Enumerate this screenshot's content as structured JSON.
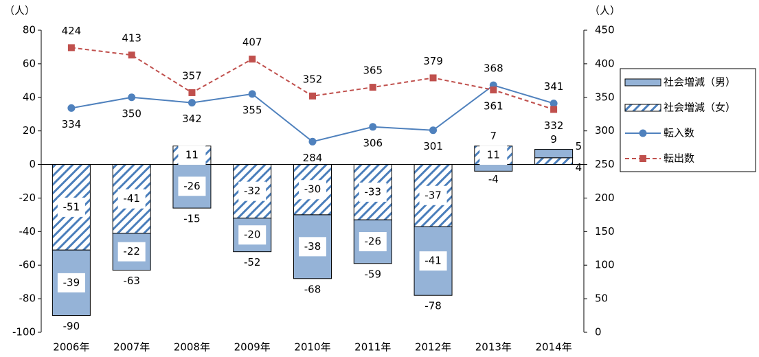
{
  "chart_data": {
    "type": "bar",
    "categories": [
      "2006年",
      "2007年",
      "2008年",
      "2009年",
      "2010年",
      "2011年",
      "2012年",
      "2013年",
      "2014年"
    ],
    "y_unit": "（人）",
    "y2_unit": "（人）",
    "ylim": [
      -100,
      80
    ],
    "yticks": [
      -100,
      -80,
      -60,
      -40,
      -20,
      0,
      20,
      40,
      60,
      80
    ],
    "y2lim": [
      0,
      450
    ],
    "y2ticks": [
      0,
      50,
      100,
      150,
      200,
      250,
      300,
      350,
      400,
      450
    ],
    "series": [
      {
        "name": "社会増減（男）",
        "type": "bar",
        "color": "#95b3d7",
        "values": [
          -39,
          -22,
          -26,
          -20,
          -38,
          -26,
          -41,
          -4,
          5
        ]
      },
      {
        "name": "社会増減（女）",
        "type": "bar",
        "hatch": true,
        "color": "#4a7ebb",
        "values": [
          -51,
          -41,
          11,
          -32,
          -30,
          -33,
          -37,
          11,
          4
        ]
      },
      {
        "name": "転入数",
        "type": "line",
        "axis": "y2",
        "color": "#4f81bd",
        "line_style": "solid",
        "marker": "circle",
        "values": [
          334,
          350,
          342,
          355,
          284,
          306,
          301,
          368,
          341
        ]
      },
      {
        "name": "転出数",
        "type": "line",
        "axis": "y2",
        "color": "#c0504d",
        "line_style": "dashed",
        "marker": "square",
        "values": [
          424,
          413,
          357,
          407,
          352,
          365,
          379,
          361,
          332
        ]
      }
    ],
    "totals": [
      -90,
      -63,
      -15,
      -52,
      -68,
      -59,
      -78,
      7,
      9
    ]
  }
}
